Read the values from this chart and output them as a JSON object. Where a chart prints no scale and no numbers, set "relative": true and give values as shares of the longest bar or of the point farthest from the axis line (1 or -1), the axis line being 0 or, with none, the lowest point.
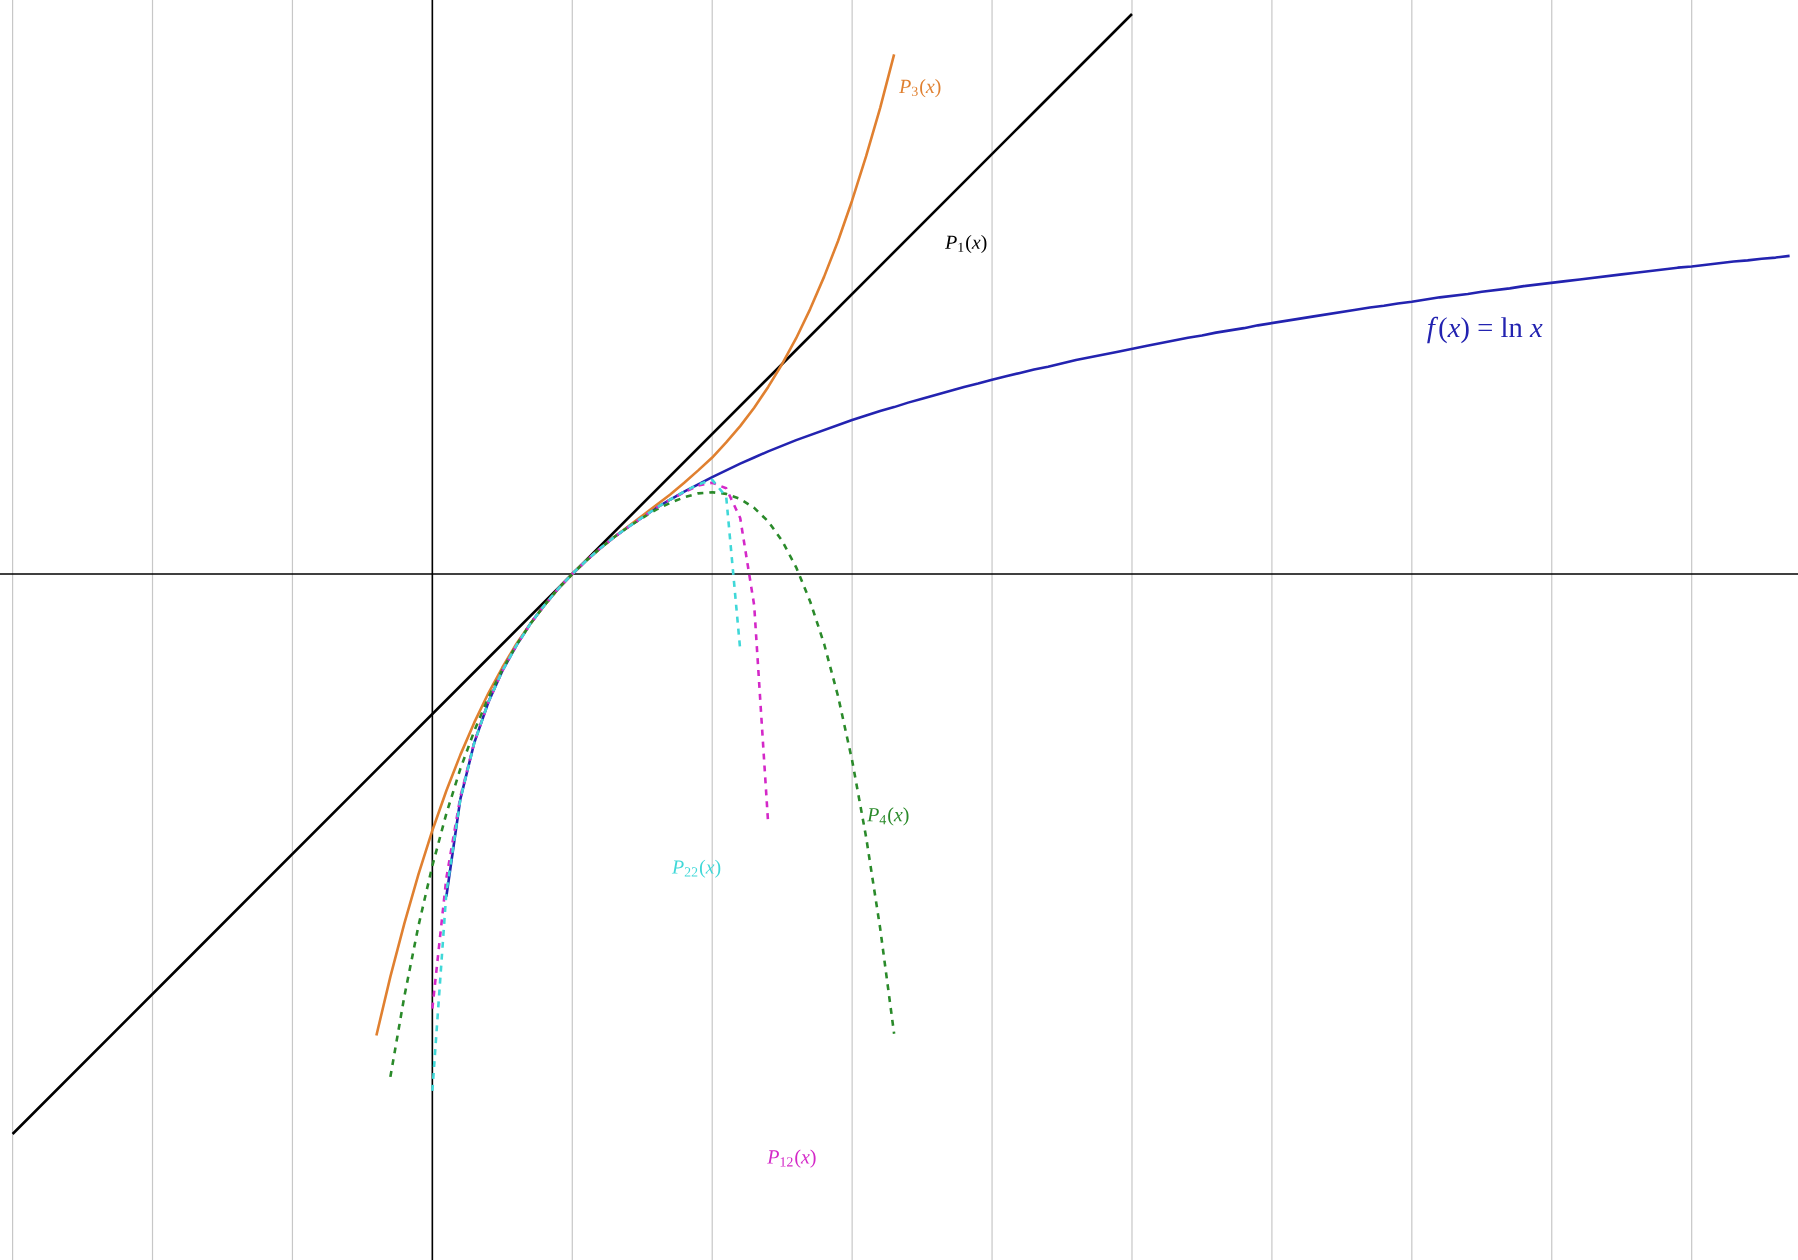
{
  "chart_data": {
    "type": "line",
    "relative": true,
    "grid": true,
    "marker": "none",
    "categories": [
      null,
      null,
      null,
      null,
      null,
      null,
      null,
      null,
      null,
      null,
      null,
      null,
      null,
      null,
      null,
      null,
      null,
      null,
      null,
      null,
      null,
      null,
      null,
      null,
      null,
      null,
      null,
      null,
      null,
      null,
      null,
      null,
      null,
      null,
      null,
      null,
      null,
      null,
      null,
      null,
      null,
      null,
      null,
      null,
      null,
      null,
      null,
      null,
      null,
      null,
      null,
      null,
      null,
      null,
      null,
      null,
      null,
      null,
      null,
      null,
      null,
      null,
      null,
      null,
      null,
      null,
      null,
      null,
      null,
      null,
      null,
      null,
      null,
      null,
      null,
      null,
      null,
      null,
      null,
      null,
      null,
      null,
      null,
      null,
      null,
      null,
      null,
      null,
      null,
      null,
      null,
      null,
      null,
      null,
      null,
      null,
      null,
      null,
      null,
      null,
      null,
      null,
      null,
      null,
      null,
      null,
      null,
      null,
      null,
      null,
      null,
      null,
      null,
      null,
      null,
      null,
      null,
      null,
      null,
      null,
      null,
      null,
      null,
      null,
      null,
      null,
      null,
      null
    ],
    "series": [
      {
        "name": "*f*(*x*) = ln *x*",
        "color": "#2323b0",
        "line_style": "solid",
        "values": [
          null,
          null,
          null,
          null,
          null,
          null,
          null,
          null,
          null,
          null,
          null,
          null,
          null,
          null,
          null,
          null,
          null,
          null,
          null,
          null,
          null,
          null,
          null,
          null,
          null,
          null,
          null,
          null,
          null,
          null,
          null,
          -0.576,
          -0.402,
          -0.301,
          -0.229,
          -0.173,
          -0.128,
          -0.089,
          -0.056,
          -0.026,
          0,
          0.024,
          0.046,
          0.066,
          0.084,
          0.101,
          0.118,
          0.133,
          0.147,
          0.16,
          0.173,
          0.185,
          0.197,
          0.208,
          0.219,
          0.229,
          0.239,
          0.248,
          0.257,
          0.266,
          0.275,
          0.283,
          0.291,
          0.298,
          0.306,
          0.313,
          0.32,
          0.327,
          0.334,
          0.34,
          0.347,
          0.353,
          0.359,
          0.365,
          0.37,
          0.376,
          0.382,
          0.387,
          0.392,
          0.397,
          0.402,
          0.407,
          0.412,
          0.417,
          0.422,
          0.426,
          0.431,
          0.435,
          0.439,
          0.444,
          0.448,
          0.452,
          0.456,
          0.46,
          0.464,
          0.468,
          0.472,
          0.476,
          0.479,
          0.483,
          0.486,
          0.49,
          0.494,
          0.497,
          0.5,
          0.504,
          0.507,
          0.51,
          0.514,
          0.517,
          0.52,
          0.523,
          0.526,
          0.529,
          0.532,
          0.535,
          0.538,
          0.541,
          0.544,
          0.547,
          0.549,
          0.552,
          0.555,
          0.558,
          0.56,
          0.563,
          0.565,
          0.568
        ]
      },
      {
        "name": "*P*$_{1}$(*x*)",
        "color": "#000000",
        "line_style": "solid",
        "values": [
          -1,
          -0.975,
          -0.95,
          -0.925,
          -0.9,
          -0.875,
          -0.85,
          -0.825,
          -0.8,
          -0.775,
          -0.75,
          -0.725,
          -0.7,
          -0.675,
          -0.65,
          -0.625,
          -0.6,
          -0.575,
          -0.55,
          -0.525,
          -0.5,
          -0.475,
          -0.45,
          -0.425,
          -0.4,
          -0.375,
          -0.35,
          -0.325,
          -0.3,
          -0.275,
          -0.25,
          -0.225,
          -0.2,
          -0.175,
          -0.15,
          -0.125,
          -0.1,
          -0.075,
          -0.05,
          -0.025,
          0,
          0.025,
          0.05,
          0.075,
          0.1,
          0.125,
          0.15,
          0.175,
          0.2,
          0.225,
          0.25,
          0.275,
          0.3,
          0.325,
          0.35,
          0.375,
          0.4,
          0.425,
          0.45,
          0.475,
          0.5,
          0.525,
          0.55,
          0.575,
          0.6,
          0.625,
          0.65,
          0.675,
          0.7,
          0.725,
          0.75,
          0.775,
          0.8,
          0.825,
          0.85,
          0.875,
          0.9,
          0.925,
          0.95,
          0.975,
          1,
          null,
          null,
          null,
          null,
          null,
          null,
          null,
          null,
          null,
          null,
          null,
          null,
          null,
          null,
          null,
          null,
          null,
          null,
          null,
          null,
          null,
          null,
          null,
          null,
          null,
          null,
          null,
          null,
          null,
          null,
          null,
          null,
          null,
          null,
          null,
          null,
          null,
          null,
          null,
          null,
          null,
          null,
          null,
          null,
          null,
          null,
          null
        ]
      },
      {
        "name": "*P*$_{3}$(*x*)",
        "color": "#e08030",
        "line_style": "solid",
        "values": [
          null,
          null,
          null,
          null,
          null,
          null,
          null,
          null,
          null,
          null,
          null,
          null,
          null,
          null,
          null,
          null,
          null,
          null,
          null,
          null,
          null,
          null,
          null,
          null,
          null,
          null,
          -0.824,
          -0.719,
          -0.624,
          -0.537,
          -0.458,
          -0.387,
          -0.323,
          -0.265,
          -0.213,
          -0.167,
          -0.125,
          -0.089,
          -0.056,
          -0.026,
          0,
          0.024,
          0.046,
          0.066,
          0.085,
          0.104,
          0.123,
          0.142,
          0.163,
          0.185,
          0.208,
          0.235,
          0.264,
          0.297,
          0.334,
          0.375,
          0.421,
          0.473,
          0.531,
          0.595,
          0.667,
          0.746,
          0.832,
          0.928,
          null,
          null,
          null,
          null,
          null,
          null,
          null,
          null,
          null,
          null,
          null,
          null,
          null,
          null,
          null,
          null,
          null,
          null,
          null,
          null,
          null,
          null,
          null,
          null,
          null,
          null,
          null,
          null,
          null,
          null,
          null,
          null,
          null,
          null,
          null,
          null,
          null,
          null,
          null,
          null,
          null,
          null,
          null,
          null,
          null,
          null,
          null,
          null,
          null,
          null,
          null,
          null,
          null,
          null,
          null,
          null,
          null,
          null,
          null,
          null,
          null,
          null,
          null,
          null
        ]
      },
      {
        "name": "*P*$_{4}$(*x*)",
        "color": "#2a8a2a",
        "line_style": "dashed",
        "values": [
          null,
          null,
          null,
          null,
          null,
          null,
          null,
          null,
          null,
          null,
          null,
          null,
          null,
          null,
          null,
          null,
          null,
          null,
          null,
          null,
          null,
          null,
          null,
          null,
          null,
          null,
          null,
          -0.898,
          -0.754,
          -0.629,
          -0.521,
          -0.428,
          -0.348,
          -0.28,
          -0.221,
          -0.171,
          -0.127,
          -0.089,
          -0.056,
          -0.026,
          0,
          0.024,
          0.046,
          0.066,
          0.084,
          0.1,
          0.115,
          0.127,
          0.137,
          0.144,
          0.146,
          0.143,
          0.134,
          0.118,
          0.094,
          0.059,
          0.012,
          -0.049,
          -0.125,
          -0.219,
          -0.333,
          -0.47,
          -0.632,
          -0.821,
          null,
          null,
          null,
          null,
          null,
          null,
          null,
          null,
          null,
          null,
          null,
          null,
          null,
          null,
          null,
          null,
          null,
          null,
          null,
          null,
          null,
          null,
          null,
          null,
          null,
          null,
          null,
          null,
          null,
          null,
          null,
          null,
          null,
          null,
          null,
          null,
          null,
          null,
          null,
          null,
          null,
          null,
          null,
          null,
          null,
          null,
          null,
          null,
          null,
          null,
          null,
          null,
          null,
          null,
          null,
          null,
          null,
          null,
          null,
          null,
          null,
          null,
          null,
          null
        ]
      },
      {
        "name": "*P*$_{12}$(*x*)",
        "color": "#d428c8",
        "line_style": "dashed",
        "values": [
          null,
          null,
          null,
          null,
          null,
          null,
          null,
          null,
          null,
          null,
          null,
          null,
          null,
          null,
          null,
          null,
          null,
          null,
          null,
          null,
          null,
          null,
          null,
          null,
          null,
          null,
          null,
          null,
          null,
          null,
          -0.776,
          -0.543,
          -0.398,
          -0.3,
          -0.229,
          -0.173,
          -0.128,
          -0.089,
          -0.056,
          -0.026,
          0,
          0.024,
          0.046,
          0.066,
          0.084,
          0.101,
          0.118,
          0.133,
          0.146,
          0.158,
          0.163,
          0.153,
          0.1,
          -0.056,
          -0.446,
          null,
          null,
          null,
          null,
          null,
          null,
          null,
          null,
          null,
          null,
          null,
          null,
          null,
          null,
          null,
          null,
          null,
          null,
          null,
          null,
          null,
          null,
          null,
          null,
          null,
          null,
          null,
          null,
          null,
          null,
          null,
          null,
          null,
          null,
          null,
          null,
          null,
          null,
          null,
          null,
          null,
          null,
          null,
          null,
          null,
          null,
          null,
          null,
          null,
          null,
          null,
          null,
          null,
          null,
          null,
          null,
          null,
          null,
          null,
          null,
          null,
          null,
          null,
          null,
          null,
          null,
          null,
          null,
          null,
          null,
          null,
          null,
          null
        ]
      },
      {
        "name": "*P*$_{22}$(*x*)",
        "color": "#40d8d8",
        "line_style": "dashed",
        "values": [
          null,
          null,
          null,
          null,
          null,
          null,
          null,
          null,
          null,
          null,
          null,
          null,
          null,
          null,
          null,
          null,
          null,
          null,
          null,
          null,
          null,
          null,
          null,
          null,
          null,
          null,
          null,
          null,
          null,
          null,
          -0.923,
          -0.569,
          -0.402,
          -0.301,
          -0.229,
          -0.173,
          -0.128,
          -0.089,
          -0.056,
          -0.026,
          0,
          0.024,
          0.046,
          0.066,
          0.084,
          0.101,
          0.118,
          0.133,
          0.147,
          0.16,
          0.168,
          0.138,
          -0.135,
          null,
          null,
          null,
          null,
          null,
          null,
          null,
          null,
          null,
          null,
          null,
          null,
          null,
          null,
          null,
          null,
          null,
          null,
          null,
          null,
          null,
          null,
          null,
          null,
          null,
          null,
          null,
          null,
          null,
          null,
          null,
          null,
          null,
          null,
          null,
          null,
          null,
          null,
          null,
          null,
          null,
          null,
          null,
          null,
          null,
          null,
          null,
          null,
          null,
          null,
          null,
          null,
          null,
          null,
          null,
          null,
          null,
          null,
          null,
          null,
          null,
          null,
          null,
          null,
          null,
          null,
          null,
          null,
          null,
          null,
          null,
          null,
          null,
          null,
          null
        ]
      }
    ]
  }
}
